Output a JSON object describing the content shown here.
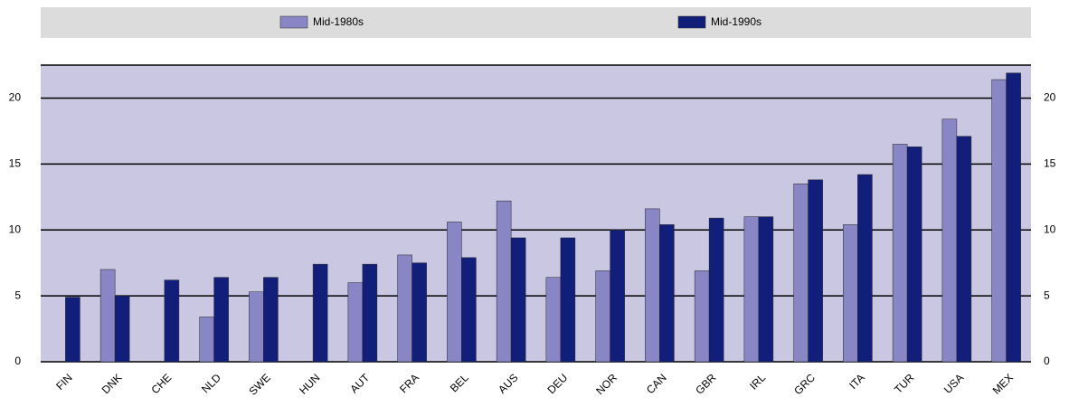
{
  "chart_data": {
    "type": "bar",
    "categories": [
      "FIN",
      "DNK",
      "CHE",
      "NLD",
      "SWE",
      "HUN",
      "AUT",
      "FRA",
      "BEL",
      "AUS",
      "DEU",
      "NOR",
      "CAN",
      "GBR",
      "IRL",
      "GRC",
      "ITA",
      "TUR",
      "USA",
      "MEX"
    ],
    "series": [
      {
        "name": "Mid-1980s",
        "color": "#8886c4",
        "values": [
          null,
          7.0,
          null,
          3.4,
          5.3,
          null,
          6.0,
          8.1,
          10.6,
          12.2,
          6.4,
          6.9,
          11.6,
          6.9,
          11.0,
          13.5,
          10.4,
          16.5,
          18.4,
          21.4
        ]
      },
      {
        "name": "Mid-1990s",
        "color": "#111f7a",
        "values": [
          4.9,
          5.0,
          6.2,
          6.4,
          6.4,
          7.4,
          7.4,
          7.5,
          7.9,
          9.4,
          9.4,
          10.0,
          10.4,
          10.9,
          11.0,
          13.8,
          14.2,
          16.3,
          17.1,
          21.9
        ]
      }
    ],
    "ylim": [
      0,
      22.5
    ],
    "yticks": [
      0,
      5,
      10,
      15,
      20
    ],
    "y2lim": [
      0,
      22.5
    ],
    "y2ticks": [
      0,
      5,
      10,
      15,
      20
    ],
    "grid": true,
    "legend": "top"
  }
}
